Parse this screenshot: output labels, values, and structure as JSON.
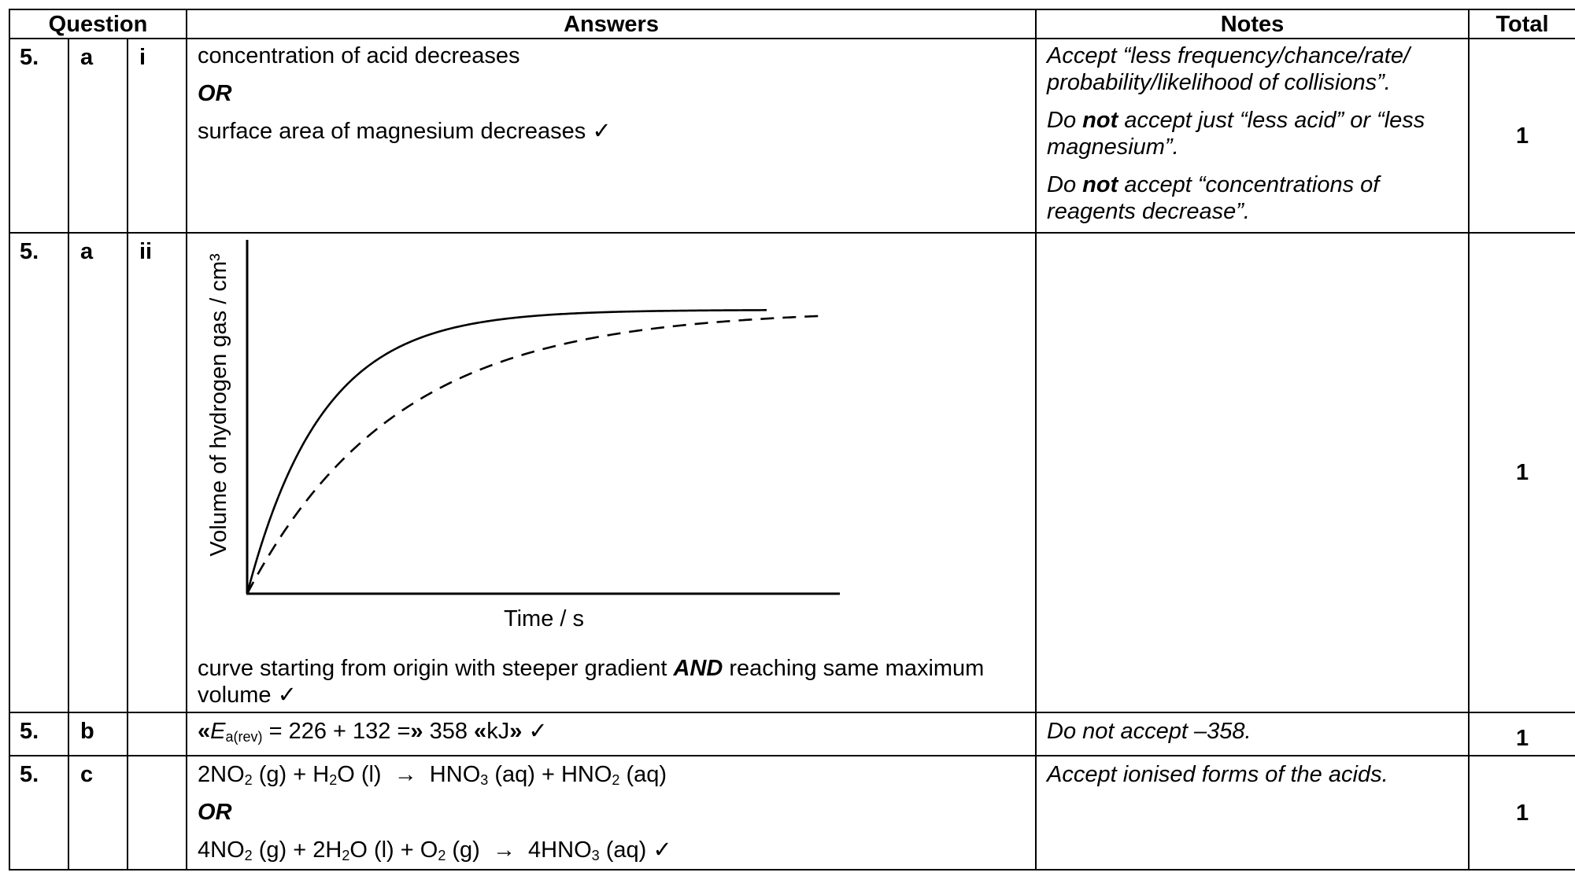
{
  "header": {
    "question": "Question",
    "answers": "Answers",
    "notes": "Notes",
    "total": "Total"
  },
  "rows": [
    {
      "num": "5.",
      "part": "a",
      "sub": "i",
      "answer_line1": "concentration of acid decreases",
      "answer_or": "OR",
      "answer_line2": "surface area of magnesium decreases ✓",
      "note1": "Accept “less frequency/chance/rate/ probability/likelihood of collisions”.",
      "note2_pre": "Do ",
      "note2_bold": "not",
      "note2_post": " accept just “less acid” or “less magnesium”.",
      "note3_pre": "Do ",
      "note3_bold": "not",
      "note3_post": " accept “concentrations of reagents decrease”.",
      "total": "1"
    },
    {
      "num": "5.",
      "part": "a",
      "sub": "ii",
      "answer_pre": "curve starting from origin with steeper gradient ",
      "answer_and": "AND",
      "answer_post": " reaching same maximum volume ✓",
      "total": "1"
    },
    {
      "num": "5.",
      "part": "b",
      "sub": "",
      "note": "Do not accept –358.",
      "total": "1"
    },
    {
      "num": "5.",
      "part": "c",
      "sub": "",
      "answer_or": "OR",
      "note": "Accept ionised forms of the acids.",
      "total": "1"
    }
  ],
  "chart_data": {
    "type": "line",
    "xlabel": "Time / s",
    "ylabel": "Volume of hydrogen gas / cm³",
    "grid": false,
    "series": [
      {
        "style": "solid",
        "description_shape": "steeper curve from origin to plateau"
      },
      {
        "style": "dashed",
        "description_shape": "original curve from origin to same plateau"
      }
    ]
  }
}
